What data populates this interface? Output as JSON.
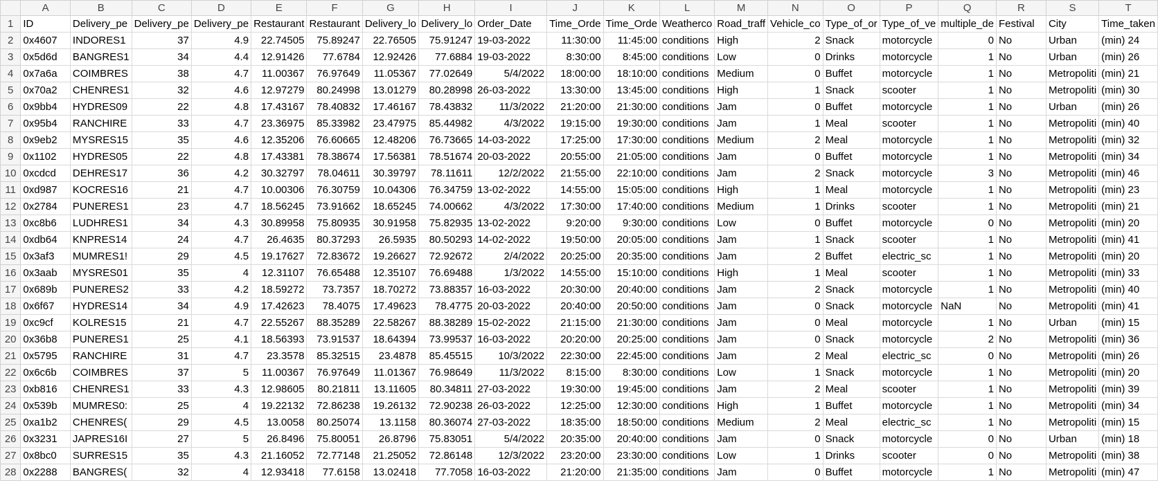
{
  "columns": [
    "A",
    "B",
    "C",
    "D",
    "E",
    "F",
    "G",
    "H",
    "I",
    "J",
    "K",
    "L",
    "M",
    "N",
    "O",
    "P",
    "Q",
    "R",
    "S",
    "T"
  ],
  "active_row": 27,
  "rows": [
    {
      "n": "1",
      "c": [
        "ID",
        "Delivery_pe",
        "Delivery_pe",
        "Delivery_pe",
        "Restaurant",
        "Restaurant",
        "Delivery_lo",
        "Delivery_lo",
        "Order_Date",
        "Time_Orde",
        "Time_Orde",
        "Weatherco",
        "Road_traff",
        "Vehicle_co",
        "Type_of_or",
        "Type_of_ve",
        "multiple_de",
        "Festival",
        "City",
        "Time_taken"
      ]
    },
    {
      "n": "2",
      "c": [
        "0x4607",
        "INDORES1",
        "37",
        "4.9",
        "22.74505",
        "75.89247",
        "22.76505",
        "75.91247",
        "19-03-2022",
        "11:30:00",
        "11:45:00",
        "conditions",
        "High",
        "2",
        "Snack",
        "motorcycle",
        "0",
        "No",
        "Urban",
        "(min) 24"
      ]
    },
    {
      "n": "3",
      "c": [
        "0x5d6d",
        "BANGRES1",
        "34",
        "4.4",
        "12.91426",
        "77.6784",
        "12.92426",
        "77.6884",
        "19-03-2022",
        "8:30:00",
        "8:45:00",
        "conditions",
        "Low",
        "0",
        "Drinks",
        "motorcycle",
        "1",
        "No",
        "Urban",
        "(min) 26"
      ]
    },
    {
      "n": "4",
      "c": [
        "0x7a6a",
        "COIMBRES",
        "38",
        "4.7",
        "11.00367",
        "76.97649",
        "11.05367",
        "77.02649",
        "5/4/2022",
        "18:00:00",
        "18:10:00",
        "conditions",
        "Medium",
        "0",
        "Buffet",
        "motorcycle",
        "1",
        "No",
        "Metropoliti",
        "(min) 21"
      ]
    },
    {
      "n": "5",
      "c": [
        "0x70a2",
        "CHENRES1",
        "32",
        "4.6",
        "12.97279",
        "80.24998",
        "13.01279",
        "80.28998",
        "26-03-2022",
        "13:30:00",
        "13:45:00",
        "conditions",
        "High",
        "1",
        "Snack",
        "scooter",
        "1",
        "No",
        "Metropoliti",
        "(min) 30"
      ]
    },
    {
      "n": "6",
      "c": [
        "0x9bb4",
        "HYDRES09",
        "22",
        "4.8",
        "17.43167",
        "78.40832",
        "17.46167",
        "78.43832",
        "11/3/2022",
        "21:20:00",
        "21:30:00",
        "conditions",
        "Jam",
        "0",
        "Buffet",
        "motorcycle",
        "1",
        "No",
        "Urban",
        "(min) 26"
      ]
    },
    {
      "n": "7",
      "c": [
        "0x95b4",
        "RANCHIRE",
        "33",
        "4.7",
        "23.36975",
        "85.33982",
        "23.47975",
        "85.44982",
        "4/3/2022",
        "19:15:00",
        "19:30:00",
        "conditions",
        "Jam",
        "1",
        "Meal",
        "scooter",
        "1",
        "No",
        "Metropoliti",
        "(min) 40"
      ]
    },
    {
      "n": "8",
      "c": [
        "0x9eb2",
        "MYSRES15",
        "35",
        "4.6",
        "12.35206",
        "76.60665",
        "12.48206",
        "76.73665",
        "14-03-2022",
        "17:25:00",
        "17:30:00",
        "conditions",
        "Medium",
        "2",
        "Meal",
        "motorcycle",
        "1",
        "No",
        "Metropoliti",
        "(min) 32"
      ]
    },
    {
      "n": "9",
      "c": [
        "0x1102",
        "HYDRES05",
        "22",
        "4.8",
        "17.43381",
        "78.38674",
        "17.56381",
        "78.51674",
        "20-03-2022",
        "20:55:00",
        "21:05:00",
        "conditions",
        "Jam",
        "0",
        "Buffet",
        "motorcycle",
        "1",
        "No",
        "Metropoliti",
        "(min) 34"
      ]
    },
    {
      "n": "10",
      "c": [
        "0xcdcd",
        "DEHRES17",
        "36",
        "4.2",
        "30.32797",
        "78.04611",
        "30.39797",
        "78.11611",
        "12/2/2022",
        "21:55:00",
        "22:10:00",
        "conditions",
        "Jam",
        "2",
        "Snack",
        "motorcycle",
        "3",
        "No",
        "Metropoliti",
        "(min) 46"
      ]
    },
    {
      "n": "11",
      "c": [
        "0xd987",
        "KOCRES16",
        "21",
        "4.7",
        "10.00306",
        "76.30759",
        "10.04306",
        "76.34759",
        "13-02-2022",
        "14:55:00",
        "15:05:00",
        "conditions",
        "High",
        "1",
        "Meal",
        "motorcycle",
        "1",
        "No",
        "Metropoliti",
        "(min) 23"
      ]
    },
    {
      "n": "12",
      "c": [
        "0x2784",
        "PUNERES1",
        "23",
        "4.7",
        "18.56245",
        "73.91662",
        "18.65245",
        "74.00662",
        "4/3/2022",
        "17:30:00",
        "17:40:00",
        "conditions",
        "Medium",
        "1",
        "Drinks",
        "scooter",
        "1",
        "No",
        "Metropoliti",
        "(min) 21"
      ]
    },
    {
      "n": "13",
      "c": [
        "0xc8b6",
        "LUDHRES1",
        "34",
        "4.3",
        "30.89958",
        "75.80935",
        "30.91958",
        "75.82935",
        "13-02-2022",
        "9:20:00",
        "9:30:00",
        "conditions",
        "Low",
        "0",
        "Buffet",
        "motorcycle",
        "0",
        "No",
        "Metropoliti",
        "(min) 20"
      ]
    },
    {
      "n": "14",
      "c": [
        "0xdb64",
        "KNPRES14",
        "24",
        "4.7",
        "26.4635",
        "80.37293",
        "26.5935",
        "80.50293",
        "14-02-2022",
        "19:50:00",
        "20:05:00",
        "conditions",
        "Jam",
        "1",
        "Snack",
        "scooter",
        "1",
        "No",
        "Metropoliti",
        "(min) 41"
      ]
    },
    {
      "n": "15",
      "c": [
        "0x3af3",
        "MUMRES1!",
        "29",
        "4.5",
        "19.17627",
        "72.83672",
        "19.26627",
        "72.92672",
        "2/4/2022",
        "20:25:00",
        "20:35:00",
        "conditions",
        "Jam",
        "2",
        "Buffet",
        "electric_sc",
        "1",
        "No",
        "Metropoliti",
        "(min) 20"
      ]
    },
    {
      "n": "16",
      "c": [
        "0x3aab",
        "MYSRES01",
        "35",
        "4",
        "12.31107",
        "76.65488",
        "12.35107",
        "76.69488",
        "1/3/2022",
        "14:55:00",
        "15:10:00",
        "conditions",
        "High",
        "1",
        "Meal",
        "scooter",
        "1",
        "No",
        "Metropoliti",
        "(min) 33"
      ]
    },
    {
      "n": "17",
      "c": [
        "0x689b",
        "PUNERES2",
        "33",
        "4.2",
        "18.59272",
        "73.7357",
        "18.70272",
        "73.88357",
        "16-03-2022",
        "20:30:00",
        "20:40:00",
        "conditions",
        "Jam",
        "2",
        "Snack",
        "motorcycle",
        "1",
        "No",
        "Metropoliti",
        "(min) 40"
      ]
    },
    {
      "n": "18",
      "c": [
        "0x6f67",
        "HYDRES14",
        "34",
        "4.9",
        "17.42623",
        "78.4075",
        "17.49623",
        "78.4775",
        "20-03-2022",
        "20:40:00",
        "20:50:00",
        "conditions",
        "Jam",
        "0",
        "Snack",
        "motorcycle",
        "NaN",
        "No",
        "Metropoliti",
        "(min) 41"
      ]
    },
    {
      "n": "19",
      "c": [
        "0xc9cf",
        "KOLRES15",
        "21",
        "4.7",
        "22.55267",
        "88.35289",
        "22.58267",
        "88.38289",
        "15-02-2022",
        "21:15:00",
        "21:30:00",
        "conditions",
        "Jam",
        "0",
        "Meal",
        "motorcycle",
        "1",
        "No",
        "Urban",
        "(min) 15"
      ]
    },
    {
      "n": "20",
      "c": [
        "0x36b8",
        "PUNERES1",
        "25",
        "4.1",
        "18.56393",
        "73.91537",
        "18.64394",
        "73.99537",
        "16-03-2022",
        "20:20:00",
        "20:25:00",
        "conditions",
        "Jam",
        "0",
        "Snack",
        "motorcycle",
        "2",
        "No",
        "Metropoliti",
        "(min) 36"
      ]
    },
    {
      "n": "21",
      "c": [
        "0x5795",
        "RANCHIRE",
        "31",
        "4.7",
        "23.3578",
        "85.32515",
        "23.4878",
        "85.45515",
        "10/3/2022",
        "22:30:00",
        "22:45:00",
        "conditions",
        "Jam",
        "2",
        "Meal",
        "electric_sc",
        "0",
        "No",
        "Metropoliti",
        "(min) 26"
      ]
    },
    {
      "n": "22",
      "c": [
        "0x6c6b",
        "COIMBRES",
        "37",
        "5",
        "11.00367",
        "76.97649",
        "11.01367",
        "76.98649",
        "11/3/2022",
        "8:15:00",
        "8:30:00",
        "conditions",
        "Low",
        "1",
        "Snack",
        "motorcycle",
        "1",
        "No",
        "Metropoliti",
        "(min) 20"
      ]
    },
    {
      "n": "23",
      "c": [
        "0xb816",
        "CHENRES1",
        "33",
        "4.3",
        "12.98605",
        "80.21811",
        "13.11605",
        "80.34811",
        "27-03-2022",
        "19:30:00",
        "19:45:00",
        "conditions",
        "Jam",
        "2",
        "Meal",
        "scooter",
        "1",
        "No",
        "Metropoliti",
        "(min) 39"
      ]
    },
    {
      "n": "24",
      "c": [
        "0x539b",
        "MUMRES0:",
        "25",
        "4",
        "19.22132",
        "72.86238",
        "19.26132",
        "72.90238",
        "26-03-2022",
        "12:25:00",
        "12:30:00",
        "conditions",
        "High",
        "1",
        "Buffet",
        "motorcycle",
        "1",
        "No",
        "Metropoliti",
        "(min) 34"
      ]
    },
    {
      "n": "25",
      "c": [
        "0xa1b2",
        "CHENRES(",
        "29",
        "4.5",
        "13.0058",
        "80.25074",
        "13.1158",
        "80.36074",
        "27-03-2022",
        "18:35:00",
        "18:50:00",
        "conditions",
        "Medium",
        "2",
        "Meal",
        "electric_sc",
        "1",
        "No",
        "Metropoliti",
        "(min) 15"
      ]
    },
    {
      "n": "26",
      "c": [
        "0x3231",
        "JAPRES16I",
        "27",
        "5",
        "26.8496",
        "75.80051",
        "26.8796",
        "75.83051",
        "5/4/2022",
        "20:35:00",
        "20:40:00",
        "conditions",
        "Jam",
        "0",
        "Snack",
        "motorcycle",
        "0",
        "No",
        "Urban",
        "(min) 18"
      ]
    },
    {
      "n": "27",
      "c": [
        "0x8bc0",
        "SURRES15",
        "35",
        "4.3",
        "21.16052",
        "72.77148",
        "21.25052",
        "72.86148",
        "12/3/2022",
        "23:20:00",
        "23:30:00",
        "conditions",
        "Low",
        "1",
        "Drinks",
        "scooter",
        "0",
        "No",
        "Metropoliti",
        "(min) 38"
      ]
    },
    {
      "n": "28",
      "c": [
        "0x2288",
        "BANGRES(",
        "32",
        "4",
        "12.93418",
        "77.6158",
        "13.02418",
        "77.7058",
        "16-03-2022",
        "21:20:00",
        "21:35:00",
        "conditions",
        "Jam",
        "0",
        "Buffet",
        "motorcycle",
        "1",
        "No",
        "Metropoliti",
        "(min) 47"
      ]
    }
  ]
}
